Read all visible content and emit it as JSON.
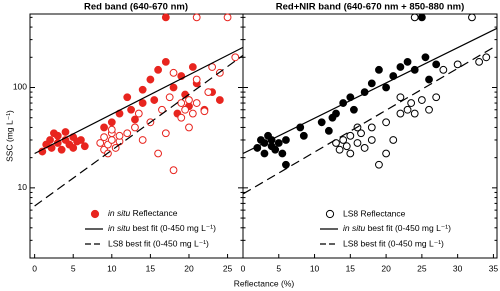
{
  "chart_data": [
    {
      "type": "scatter",
      "title": "Red band (640-670 nm)",
      "ylabel": "SSC (mg L⁻¹)",
      "xlabel": "Reflectance (%)",
      "log_y": true,
      "xlim": [
        -0.6,
        27
      ],
      "ylim": [
        2,
        540
      ],
      "xticks": [
        0,
        5,
        10,
        15,
        20,
        25
      ],
      "yticks": [
        10,
        100
      ],
      "yminorticks": [
        2,
        3,
        4,
        5,
        6,
        7,
        8,
        9,
        20,
        30,
        40,
        50,
        60,
        70,
        80,
        90,
        200,
        300,
        400,
        500
      ],
      "series": [
        {
          "name": "in situ Reflectance",
          "style": "filled",
          "color": "#e8251f",
          "x": [
            1,
            1.5,
            2,
            2.2,
            2.5,
            3,
            3,
            3.5,
            4,
            4,
            4.5,
            5,
            5,
            5.5,
            6,
            6.5,
            9,
            10,
            11,
            12,
            12.5,
            13,
            14,
            14,
            15,
            15.5,
            16,
            17,
            17,
            18,
            18.5,
            19,
            19.5,
            20,
            20.5,
            21,
            22,
            23,
            24
          ],
          "values": [
            23,
            27,
            30,
            25,
            35,
            28,
            33,
            24,
            30,
            36,
            27,
            32,
            25,
            29,
            30,
            26,
            40,
            45,
            55,
            80,
            60,
            48,
            70,
            95,
            120,
            75,
            150,
            180,
            500,
            100,
            55,
            130,
            85,
            65,
            160,
            110,
            60,
            90,
            75
          ]
        },
        {
          "style": "open",
          "color": "#e8251f",
          "x": [
            8.5,
            9,
            9,
            9.5,
            9.5,
            10,
            10,
            10.5,
            11,
            11,
            10,
            12,
            13,
            13.5,
            14,
            15,
            16,
            16.5,
            17,
            17.5,
            18,
            18,
            19,
            19.5,
            20,
            20,
            20.5,
            21,
            21,
            22,
            22.5,
            23,
            24,
            25,
            26,
            21,
            19
          ],
          "values": [
            28,
            24,
            32,
            22,
            27,
            30,
            35,
            25,
            29,
            33,
            38,
            35,
            40,
            55,
            30,
            45,
            22,
            60,
            35,
            80,
            15,
            140,
            50,
            60,
            40,
            75,
            55,
            70,
            120,
            58,
            90,
            160,
            140,
            500,
            200,
            500,
            70
          ]
        },
        {
          "name": "in situ best fit (0-450 mg L⁻¹)",
          "style": "solid",
          "color": "#000000",
          "x": [
            0,
            27
          ],
          "values": [
            22,
            251
          ]
        },
        {
          "name": "LS8 best fit (0-450 mg L⁻¹)",
          "style": "dashed",
          "color": "#000000",
          "x": [
            0,
            27
          ],
          "values": [
            6.6,
            209
          ]
        }
      ]
    },
    {
      "type": "scatter",
      "title": "Red+NIR band (640-670 nm + 850-880 nm)",
      "log_y": true,
      "xlim": [
        0,
        35.5
      ],
      "ylim": [
        2,
        540
      ],
      "xticks": [
        0,
        5,
        10,
        15,
        20,
        25,
        30,
        35
      ],
      "yticks": [
        10,
        100
      ],
      "yminorticks": [
        2,
        3,
        4,
        5,
        6,
        7,
        8,
        9,
        20,
        30,
        40,
        50,
        60,
        70,
        80,
        90,
        200,
        300,
        400,
        500
      ],
      "series": [
        {
          "style": "filled",
          "color": "#000000",
          "x": [
            2,
            2.5,
            3,
            3,
            3.5,
            4,
            4,
            4.5,
            5,
            5.5,
            6,
            6,
            8,
            8.5,
            11,
            12,
            12.5,
            13,
            14,
            15,
            15.5,
            17,
            18,
            19,
            20,
            21,
            22,
            23,
            24,
            25,
            25.5,
            26,
            27
          ],
          "values": [
            25,
            30,
            22,
            28,
            33,
            26,
            30,
            24,
            28,
            22,
            30,
            17,
            40,
            33,
            45,
            37,
            50,
            55,
            70,
            80,
            60,
            90,
            110,
            150,
            100,
            130,
            160,
            180,
            150,
            500,
            200,
            120,
            170
          ]
        },
        {
          "name": "LS8 Reflectance",
          "style": "open",
          "color": "#000000",
          "x": [
            13,
            13.5,
            14,
            14.5,
            15,
            15,
            16,
            16.5,
            17,
            18,
            16,
            19,
            20,
            21,
            22,
            23,
            23.5,
            24,
            25,
            26,
            27,
            28,
            30,
            32,
            33,
            34,
            24,
            22,
            18,
            20
          ],
          "values": [
            28,
            24,
            30,
            26,
            33,
            22,
            28,
            35,
            25,
            30,
            40,
            17,
            45,
            30,
            55,
            60,
            70,
            55,
            75,
            60,
            80,
            150,
            170,
            500,
            180,
            200,
            500,
            80,
            40,
            22
          ]
        },
        {
          "name": "in situ best fit (0-450 mg L⁻¹)",
          "style": "solid",
          "color": "#000000",
          "x": [
            0,
            35.5
          ],
          "values": [
            22,
            389
          ]
        },
        {
          "name": "LS8 best fit (0-450 mg L⁻¹)",
          "style": "dashed",
          "color": "#000000",
          "x": [
            0,
            35.5
          ],
          "values": [
            8.7,
            263
          ]
        }
      ]
    }
  ]
}
